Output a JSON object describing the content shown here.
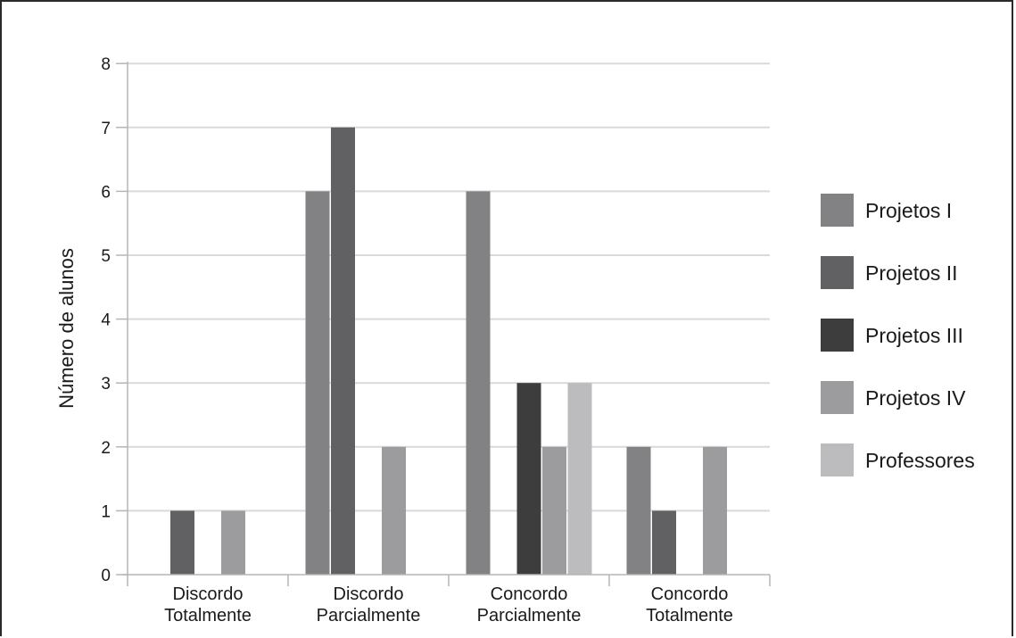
{
  "chart_data": {
    "type": "bar",
    "categories": [
      [
        "Discordo",
        "Totalmente"
      ],
      [
        "Discordo",
        "Parcialmente"
      ],
      [
        "Concordo",
        "Parcialmente"
      ],
      [
        "Concordo",
        "Totalmente"
      ]
    ],
    "series": [
      {
        "name": "Projetos I",
        "color": "#828285",
        "values": [
          0,
          6,
          6,
          2
        ]
      },
      {
        "name": "Projetos II",
        "color": "#616163",
        "values": [
          1,
          7,
          0,
          1
        ]
      },
      {
        "name": "Projetos III",
        "color": "#3d3d3d",
        "values": [
          0,
          0,
          3,
          0
        ]
      },
      {
        "name": "Projetos IV",
        "color": "#9c9c9e",
        "values": [
          1,
          2,
          2,
          2
        ]
      },
      {
        "name": "Professores",
        "color": "#bcbcbe",
        "values": [
          0,
          0,
          3,
          0
        ]
      }
    ],
    "ylabel": "Número de alunos",
    "ylim": [
      0,
      8
    ],
    "yticks": [
      "0",
      "1",
      "2",
      "3",
      "4",
      "5",
      "6",
      "7",
      "8"
    ],
    "grid": true,
    "legend_position": "right"
  }
}
